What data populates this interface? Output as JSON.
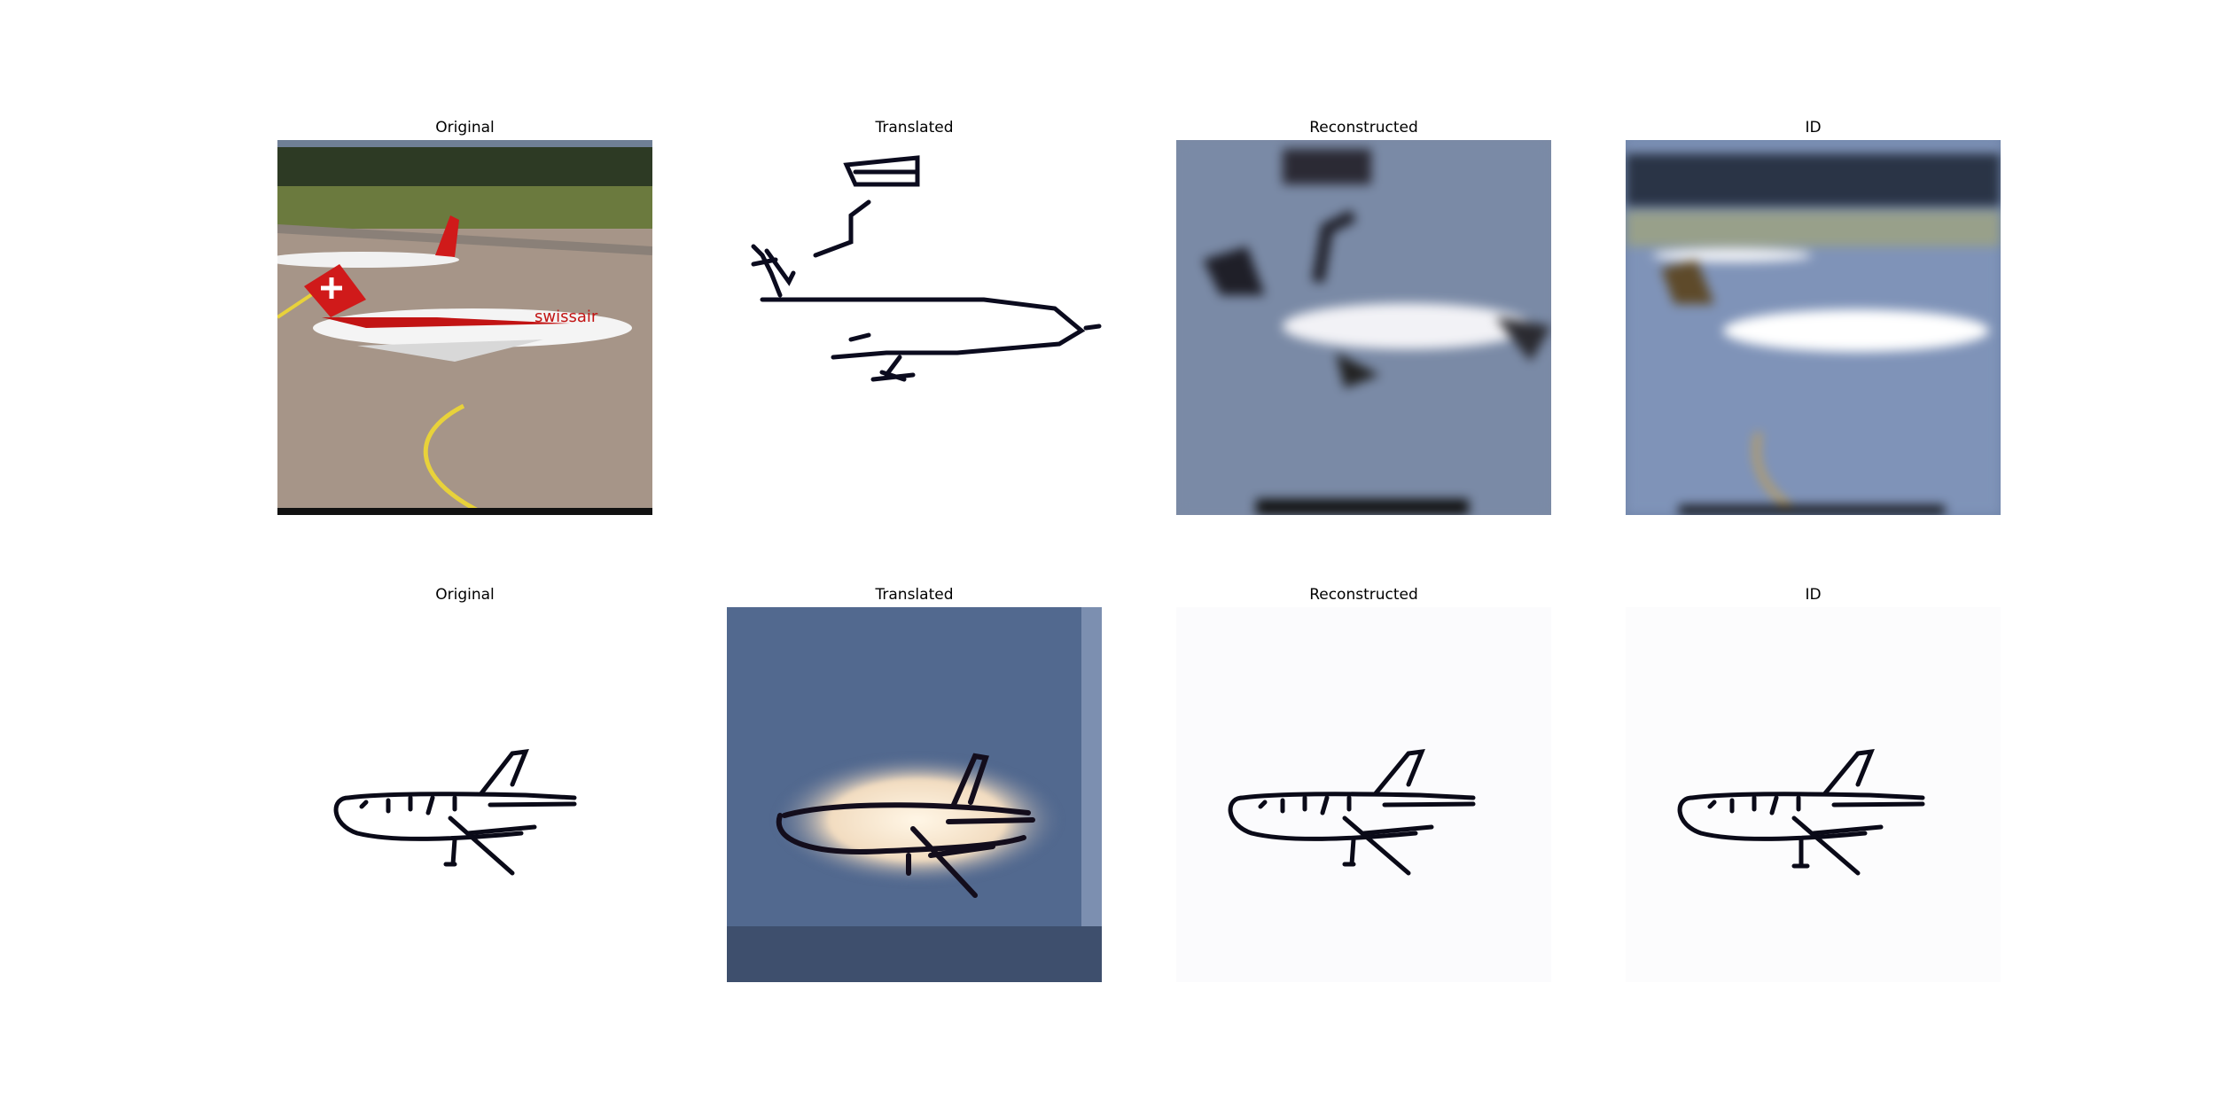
{
  "grid": {
    "rows": [
      {
        "panels": [
          {
            "title": "Original",
            "content": "photo of Swissair airliner on tarmac"
          },
          {
            "title": "Translated",
            "content": "line sketch of airplane"
          },
          {
            "title": "Reconstructed",
            "content": "blurred photo of airplane"
          },
          {
            "title": "ID",
            "content": "blurred photo of airplane"
          }
        ]
      },
      {
        "panels": [
          {
            "title": "Original",
            "content": "line sketch of airplane"
          },
          {
            "title": "Translated",
            "content": "blurred photo-style airplane"
          },
          {
            "title": "Reconstructed",
            "content": "line sketch of airplane"
          },
          {
            "title": "ID",
            "content": "line sketch of airplane"
          }
        ]
      }
    ]
  },
  "photo_text": {
    "livery": "swissair"
  }
}
